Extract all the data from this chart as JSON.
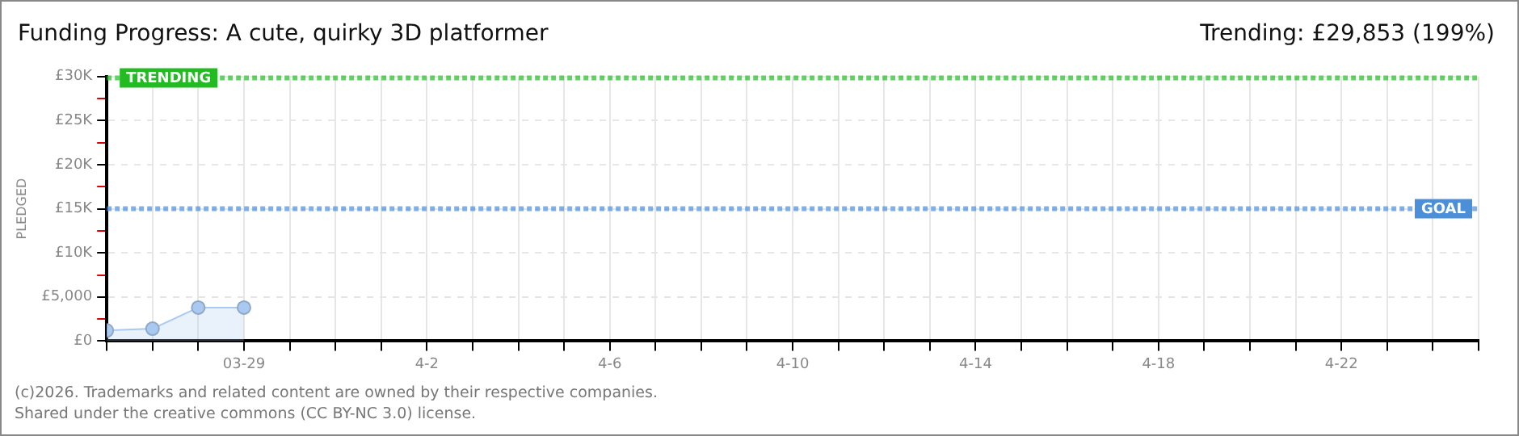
{
  "chart_data": {
    "type": "area",
    "title": "Funding Progress: A cute, quirky 3D platformer",
    "subtitle": "Trending:  £29,853 (199%)",
    "ylabel": "PLEDGED",
    "x": [
      "--03-26",
      "--03-27",
      "--03-28",
      "--03-29"
    ],
    "series": [
      {
        "color": "#a9c9f0",
        "values": [
          1200,
          1400,
          3800,
          3800
        ]
      }
    ],
    "xlim": [
      "--03-26",
      "--04-25"
    ],
    "xticks": [
      {
        "value": "--03-26",
        "label": null
      },
      {
        "value": "--03-27",
        "label": null
      },
      {
        "value": "--03-28",
        "label": null
      },
      {
        "value": "--03-29",
        "label": "03-29"
      },
      {
        "value": "--03-30",
        "label": null
      },
      {
        "value": "--03-31",
        "label": null
      },
      {
        "value": "--04-01",
        "label": null
      },
      {
        "value": "--04-02",
        "label": "4-2"
      },
      {
        "value": "--04-03",
        "label": null
      },
      {
        "value": "--04-04",
        "label": null
      },
      {
        "value": "--04-05",
        "label": null
      },
      {
        "value": "--04-06",
        "label": "4-6"
      },
      {
        "value": "--04-07",
        "label": null
      },
      {
        "value": "--04-08",
        "label": null
      },
      {
        "value": "--04-09",
        "label": null
      },
      {
        "value": "--04-10",
        "label": "4-10"
      },
      {
        "value": "--04-11",
        "label": null
      },
      {
        "value": "--04-12",
        "label": null
      },
      {
        "value": "--04-13",
        "label": null
      },
      {
        "value": "--04-14",
        "label": "4-14"
      },
      {
        "value": "--04-15",
        "label": null
      },
      {
        "value": "--04-16",
        "label": null
      },
      {
        "value": "--04-17",
        "label": null
      },
      {
        "value": "--04-18",
        "label": "4-18"
      },
      {
        "value": "--04-19",
        "label": null
      },
      {
        "value": "--04-20",
        "label": null
      },
      {
        "value": "--04-21",
        "label": null
      },
      {
        "value": "--04-22",
        "label": "4-22"
      },
      {
        "value": "--04-23",
        "label": null
      },
      {
        "value": "--04-24",
        "label": null
      },
      {
        "value": "--04-25",
        "label": null
      }
    ],
    "ylim": [
      0,
      30000
    ],
    "yticks": [
      {
        "value": 0,
        "label": "£0"
      },
      {
        "value": 2500,
        "label": null
      },
      {
        "value": 5000,
        "label": "£5,000"
      },
      {
        "value": 7500,
        "label": null
      },
      {
        "value": 10000,
        "label": "£10K"
      },
      {
        "value": 12500,
        "label": null
      },
      {
        "value": 15000,
        "label": "£15K"
      },
      {
        "value": 17500,
        "label": null
      },
      {
        "value": 20000,
        "label": "£20K"
      },
      {
        "value": 22500,
        "label": null
      },
      {
        "value": 25000,
        "label": "£25K"
      },
      {
        "value": 27500,
        "label": null
      },
      {
        "value": 30000,
        "label": "£30K"
      }
    ],
    "ref_lines": [
      {
        "axis": "y",
        "value": 29853,
        "label": "TRENDING",
        "color": "#22bb22",
        "line_style": "dotted"
      },
      {
        "axis": "y",
        "value": 15000,
        "label": "GOAL",
        "color": "#4a8fd8",
        "line_style": "dotted"
      }
    ],
    "grid": true,
    "marker": "circle",
    "legend": false,
    "annotations": [
      "(c)2026. Trademarks and related content are owned by their respective companies.",
      "Shared under the creative commons (CC BY-NC 3.0) license."
    ]
  }
}
